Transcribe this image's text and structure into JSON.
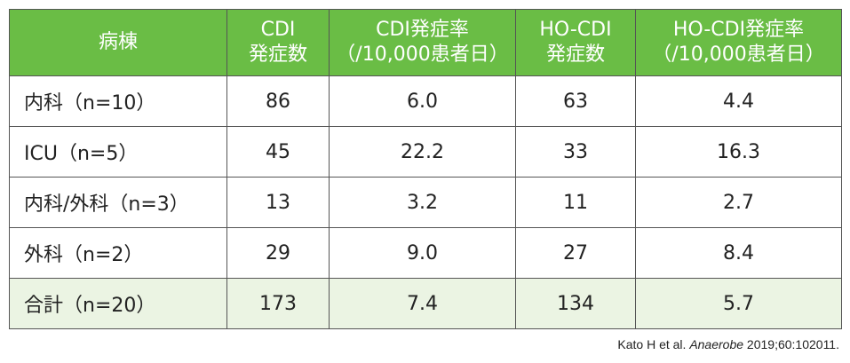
{
  "table": {
    "headers": [
      [
        "病棟"
      ],
      [
        "CDI",
        "発症数"
      ],
      [
        "CDI発症率",
        "（/10,000患者日）"
      ],
      [
        "HO-CDI",
        "発症数"
      ],
      [
        "HO-CDI発症率",
        "（/10,000患者日）"
      ]
    ],
    "rows": [
      [
        "内科（n=10）",
        "86",
        "6.0",
        "63",
        "4.4"
      ],
      [
        "ICU（n=5）",
        "45",
        "22.2",
        "33",
        "16.3"
      ],
      [
        "内科/外科（n=3）",
        "13",
        "3.2",
        "11",
        "2.7"
      ],
      [
        "外科（n=2）",
        "29",
        "9.0",
        "27",
        "8.4"
      ],
      [
        "合計（n=20）",
        "173",
        "7.4",
        "134",
        "5.7"
      ]
    ]
  },
  "citation": {
    "authors": "Kato H et al.",
    "journal": "Anaerobe",
    "details": "2019;60:102011."
  }
}
